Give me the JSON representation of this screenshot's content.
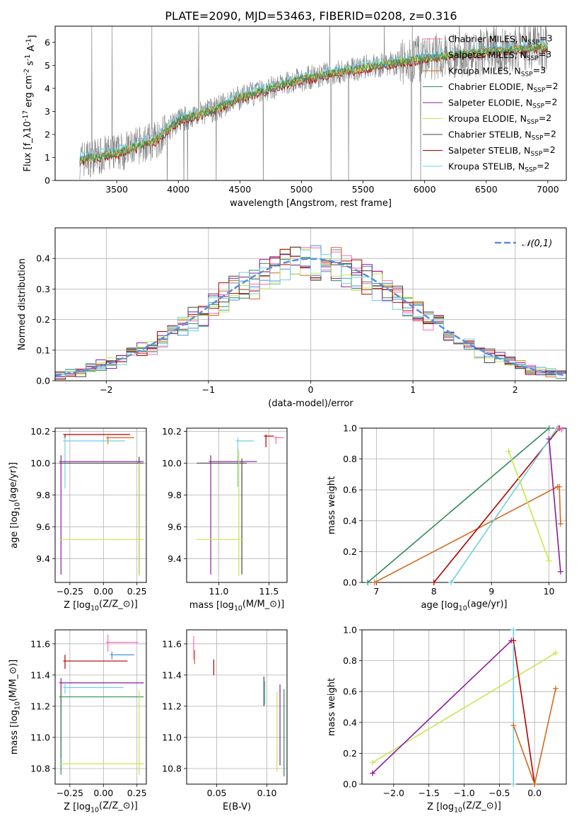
{
  "figure": {
    "title": "PLATE=2090, MJD=53463, FIBERID=0208, z=0.316"
  },
  "colors": {
    "Chabrier MILES": "#ff69b4",
    "Salpeter MILES": "#4a90d9",
    "Kroupa MILES": "#d2691e",
    "Chabrier ELODIE": "#2e8b57",
    "Salpeter ELODIE": "#8b1a9b",
    "Kroupa ELODIE": "#c8e64b",
    "Chabrier STELIB": "#444444",
    "Salpeter STELIB": "#b00000",
    "Kroupa STELIB": "#70d0dd",
    "data": "#808080",
    "gaussian": "#5b8dd9"
  },
  "chart_data": [
    {
      "id": "spectrum",
      "type": "line",
      "title": "PLATE=2090, MJD=53463, FIBERID=0208, z=0.316",
      "xlabel": "wavelength [Angstrom, rest frame]",
      "ylabel": "Flux [f$_\\lambda$10$^{-17}$ erg cm$^{-2}$ s$^{-1}$ A$^{-1}$]",
      "xlim": [
        3000,
        7150
      ],
      "ylim": [
        0,
        6.7
      ],
      "xticks": [
        "3500",
        "4000",
        "4500",
        "5000",
        "5500",
        "6000",
        "6500",
        "7000"
      ],
      "yticks": [
        "0",
        "1",
        "2",
        "3",
        "4",
        "5",
        "6"
      ],
      "grid": false,
      "legend": "right",
      "legend_entries": [
        "Chabrier MILES, N$_{SSP}$=3",
        "Salpeter MILES, N$_{SSP}$=3",
        "Kroupa MILES, N$_{SSP}$=3",
        "Chabrier ELODIE, N$_{SSP}$=2",
        "Salpeter ELODIE, N$_{SSP}$=2",
        "Kroupa ELODIE, N$_{SSP}$=2",
        "Chabrier STELIB, N$_{SSP}$=2",
        "Salpeter STELIB, N$_{SSP}$=2",
        "Kroupa STELIB, N$_{SSP}$=2"
      ],
      "model_x": [
        3200,
        3500,
        3800,
        4000,
        4300,
        4500,
        5000,
        5500,
        6000,
        6500,
        7000
      ],
      "model_y": [
        0.9,
        1.2,
        1.7,
        2.6,
        3.1,
        3.6,
        4.4,
        4.9,
        5.3,
        5.6,
        5.8
      ],
      "model_series": [
        "Salpeter STELIB",
        "Kroupa STELIB",
        "Salpeter MILES",
        "Kroupa MILES",
        "Kroupa ELODIE",
        "Chabrier ELODIE"
      ]
    },
    {
      "id": "residuals",
      "type": "line",
      "xlabel": "(data-model)/error",
      "ylabel": "Normed distribution",
      "xlim": [
        -2.5,
        2.5
      ],
      "ylim": [
        0,
        0.5
      ],
      "xticks": [
        "−2",
        "−1",
        "0",
        "1",
        "2"
      ],
      "yticks": [
        "0.0",
        "0.1",
        "0.2",
        "0.3",
        "0.4"
      ],
      "grid": true,
      "legend": "top-right",
      "legend_entries": [
        "$\\mathcal{N}(0,1)$"
      ],
      "curve": "standard normal N(0,1)",
      "hist_series": [
        "Chabrier MILES",
        "Salpeter MILES",
        "Kroupa MILES",
        "Chabrier ELODIE",
        "Salpeter ELODIE",
        "Kroupa ELODIE",
        "Chabrier STELIB",
        "Salpeter STELIB",
        "Kroupa STELIB"
      ]
    },
    {
      "id": "age-vs-Z",
      "type": "scatter",
      "xlabel": "Z [log$_{10}$($Z/Z_\\odot$)]",
      "ylabel": "age  [log$_{10}$($age/yr$)]",
      "xlim": [
        -0.36,
        0.32
      ],
      "ylim": [
        9.25,
        10.22
      ],
      "xticks": [
        "−0.25",
        "0.00",
        "0.25"
      ],
      "yticks": [
        "9.4",
        "9.6",
        "9.8",
        "10.0",
        "10.2"
      ],
      "grid": true,
      "points": [
        {
          "series": "Salpeter STELIB",
          "x": [
            -0.3,
            0.2
          ],
          "y": [
            10.18,
            10.18
          ],
          "ybar": [
            10.16,
            10.18
          ]
        },
        {
          "series": "Kroupa MILES",
          "x": [
            0.02,
            0.23
          ],
          "y": [
            10.16,
            10.16
          ],
          "ybar": [
            10.12,
            10.17
          ]
        },
        {
          "series": "Kroupa STELIB",
          "x": [
            -0.3,
            0.16
          ],
          "y": [
            10.14,
            10.14
          ],
          "ybar": [
            9.84,
            10.16
          ]
        },
        {
          "series": "Salpeter ELODIE",
          "x": [
            -0.33,
            0.3
          ],
          "y": [
            10.01,
            10.01
          ],
          "ybar": [
            9.3,
            10.05
          ]
        },
        {
          "series": "Chabrier STELIB",
          "x": [
            -0.33,
            0.3
          ],
          "y": [
            10.0,
            10.0
          ],
          "ybar": [
            9.3,
            10.04
          ]
        },
        {
          "series": "Kroupa ELODIE",
          "x": [
            -0.33,
            0.3
          ],
          "y": [
            9.52,
            9.52
          ],
          "ybar": [
            9.29,
            10.0
          ]
        }
      ]
    },
    {
      "id": "age-vs-mass",
      "type": "scatter",
      "xlabel": "mass [log$_{10}$($M/M_\\odot$)]",
      "ylabel": "",
      "xlim": [
        10.68,
        11.68
      ],
      "ylim": [
        9.25,
        10.22
      ],
      "xticks": [
        "11.0",
        "11.5"
      ],
      "yticks": [
        "9.4",
        "9.6",
        "9.8",
        "10.0",
        "10.2"
      ],
      "grid": true,
      "points": [
        {
          "series": "Salpeter STELIB",
          "x": [
            11.45,
            11.55
          ],
          "y": [
            10.17,
            10.17
          ],
          "ybar": [
            10.1,
            10.18
          ]
        },
        {
          "series": "Chabrier MILES",
          "x": [
            11.55,
            11.65
          ],
          "y": [
            10.16,
            10.16
          ],
          "ybar": [
            10.12,
            10.17
          ]
        },
        {
          "series": "Kroupa STELIB",
          "x": [
            11.17,
            11.35
          ],
          "y": [
            10.14,
            10.14
          ],
          "ybar": [
            9.85,
            10.16
          ]
        },
        {
          "series": "Salpeter ELODIE",
          "x": [
            10.9,
            11.38
          ],
          "y": [
            10.01,
            10.01
          ],
          "ybar": [
            9.3,
            10.05
          ]
        },
        {
          "series": "Chabrier STELIB",
          "x": [
            10.78,
            11.28
          ],
          "y": [
            10.0,
            10.0
          ],
          "ybar": [
            9.3,
            10.03
          ]
        },
        {
          "series": "Kroupa ELODIE",
          "x": [
            10.78,
            11.25
          ],
          "y": [
            9.52,
            9.52
          ],
          "ybar": [
            9.29,
            10.08
          ]
        }
      ]
    },
    {
      "id": "weight-vs-age",
      "type": "line",
      "xlabel": "age  [log$_{10}$($age/yr$)]",
      "ylabel": "mass weight",
      "xlim": [
        6.75,
        10.3
      ],
      "ylim": [
        0,
        1
      ],
      "xticks": [
        "7",
        "8",
        "9",
        "10"
      ],
      "yticks": [
        "0.0",
        "0.2",
        "0.4",
        "0.6",
        "0.8",
        "1.0"
      ],
      "grid": true,
      "series": [
        {
          "name": "Chabrier ELODIE",
          "x": [
            6.85,
            10.0
          ],
          "y": [
            0.0,
            1.0
          ]
        },
        {
          "name": "Kroupa MILES",
          "x": [
            6.97,
            10.15,
            10.18,
            10.2
          ],
          "y": [
            0.0,
            0.62,
            0.62,
            0.38
          ]
        },
        {
          "name": "Salpeter STELIB",
          "x": [
            8.0,
            10.18
          ],
          "y": [
            0.0,
            1.0
          ]
        },
        {
          "name": "Kroupa STELIB",
          "x": [
            8.3,
            10.14
          ],
          "y": [
            0.0,
            1.0
          ]
        },
        {
          "name": "Kroupa ELODIE",
          "x": [
            9.3,
            10.0
          ],
          "y": [
            0.85,
            0.14
          ]
        },
        {
          "name": "Salpeter ELODIE",
          "x": [
            10.0,
            10.2
          ],
          "y": [
            0.93,
            0.07
          ]
        },
        {
          "name": "Chabrier MILES",
          "x": [
            10.16,
            10.22
          ],
          "y": [
            1.0,
            0.99
          ]
        }
      ]
    },
    {
      "id": "mass-vs-Z",
      "type": "scatter",
      "xlabel": "Z [log$_{10}$($Z/Z_\\odot$)]",
      "ylabel": "mass [log$_{10}$($M/M_\\odot$)]",
      "xlim": [
        -0.36,
        0.32
      ],
      "ylim": [
        10.7,
        11.69
      ],
      "xticks": [
        "−0.25",
        "0.00",
        "0.25"
      ],
      "yticks": [
        "10.8",
        "11.0",
        "11.2",
        "11.4",
        "11.6"
      ],
      "grid": true,
      "points": [
        {
          "series": "Chabrier MILES",
          "x": [
            0.02,
            0.26
          ],
          "y": [
            11.61,
            11.61
          ],
          "ybar": [
            11.55,
            11.66
          ]
        },
        {
          "series": "Salpeter MILES",
          "x": [
            0.05,
            0.23
          ],
          "y": [
            11.53,
            11.53
          ],
          "ybar": [
            11.5,
            11.55
          ]
        },
        {
          "series": "Salpeter STELIB",
          "x": [
            -0.3,
            0.18
          ],
          "y": [
            11.49,
            11.49
          ],
          "ybar": [
            11.44,
            11.53
          ]
        },
        {
          "series": "Salpeter ELODIE",
          "x": [
            -0.33,
            0.3
          ],
          "y": [
            11.35,
            11.35
          ],
          "ybar": [
            10.87,
            11.38
          ]
        },
        {
          "series": "Kroupa STELIB",
          "x": [
            -0.3,
            0.15
          ],
          "y": [
            11.32,
            11.32
          ],
          "ybar": [
            11.28,
            11.36
          ]
        },
        {
          "series": "Chabrier ELODIE",
          "x": [
            -0.33,
            0.3
          ],
          "y": [
            11.26,
            11.26
          ],
          "ybar": [
            10.76,
            11.3
          ]
        },
        {
          "series": "Kroupa ELODIE",
          "x": [
            -0.33,
            0.3
          ],
          "y": [
            10.83,
            10.83
          ],
          "ybar": [
            10.76,
            11.3
          ]
        }
      ]
    },
    {
      "id": "mass-vs-EBV",
      "type": "scatter",
      "xlabel": "E(B-V)",
      "ylabel": "",
      "xlim": [
        0.02,
        0.12
      ],
      "ylim": [
        10.7,
        11.69
      ],
      "xticks": [
        "0.05",
        "0.10"
      ],
      "yticks": [
        "10.8",
        "11.0",
        "11.2",
        "11.4",
        "11.6"
      ],
      "grid": true,
      "points": [
        {
          "series": "Chabrier MILES",
          "x": [
            0.027
          ],
          "ybar": [
            11.5,
            11.65
          ]
        },
        {
          "series": "Kroupa MILES",
          "x": [
            0.028
          ],
          "ybar": [
            11.47,
            11.56
          ]
        },
        {
          "series": "Salpeter STELIB",
          "x": [
            0.047
          ],
          "ybar": [
            11.4,
            11.5
          ]
        },
        {
          "series": "Chabrier STELIB",
          "x": [
            0.097
          ],
          "ybar": [
            11.2,
            11.39
          ]
        },
        {
          "series": "Kroupa STELIB",
          "x": [
            0.098
          ],
          "ybar": [
            11.21,
            11.36
          ]
        },
        {
          "series": "Kroupa ELODIE",
          "x": [
            0.11
          ],
          "ybar": [
            10.78,
            11.29
          ]
        },
        {
          "series": "Salpeter ELODIE",
          "x": [
            0.113
          ],
          "ybar": [
            10.82,
            11.34
          ]
        },
        {
          "series": "Chabrier ELODIE",
          "x": [
            0.117
          ],
          "ybar": [
            10.75,
            11.31
          ]
        }
      ]
    },
    {
      "id": "weight-vs-Z",
      "type": "line",
      "xlabel": "Z [log$_{10}$($Z/Z_\\odot$)]",
      "ylabel": "mass weight",
      "xlim": [
        -2.45,
        0.45
      ],
      "ylim": [
        0,
        1
      ],
      "xticks": [
        "−2.0",
        "−1.5",
        "−1.0",
        "−0.5",
        "0.0"
      ],
      "yticks": [
        "0.0",
        "0.2",
        "0.4",
        "0.6",
        "0.8",
        "1.0"
      ],
      "grid": true,
      "series": [
        {
          "name": "Kroupa ELODIE",
          "x": [
            -2.3,
            0.3
          ],
          "y": [
            0.14,
            0.85
          ]
        },
        {
          "name": "Salpeter ELODIE",
          "x": [
            -2.3,
            -0.33
          ],
          "y": [
            0.07,
            0.93
          ]
        },
        {
          "name": "Salpeter STELIB",
          "x": [
            -0.3,
            0.0
          ],
          "y": [
            0.93,
            0.0
          ]
        },
        {
          "name": "Kroupa MILES",
          "x": [
            -0.3,
            0.0,
            0.3
          ],
          "y": [
            0.38,
            0.0,
            0.62
          ]
        },
        {
          "name": "Kroupa STELIB",
          "x": [
            -0.3,
            -0.3
          ],
          "y": [
            0.0,
            1.0
          ]
        }
      ]
    }
  ]
}
